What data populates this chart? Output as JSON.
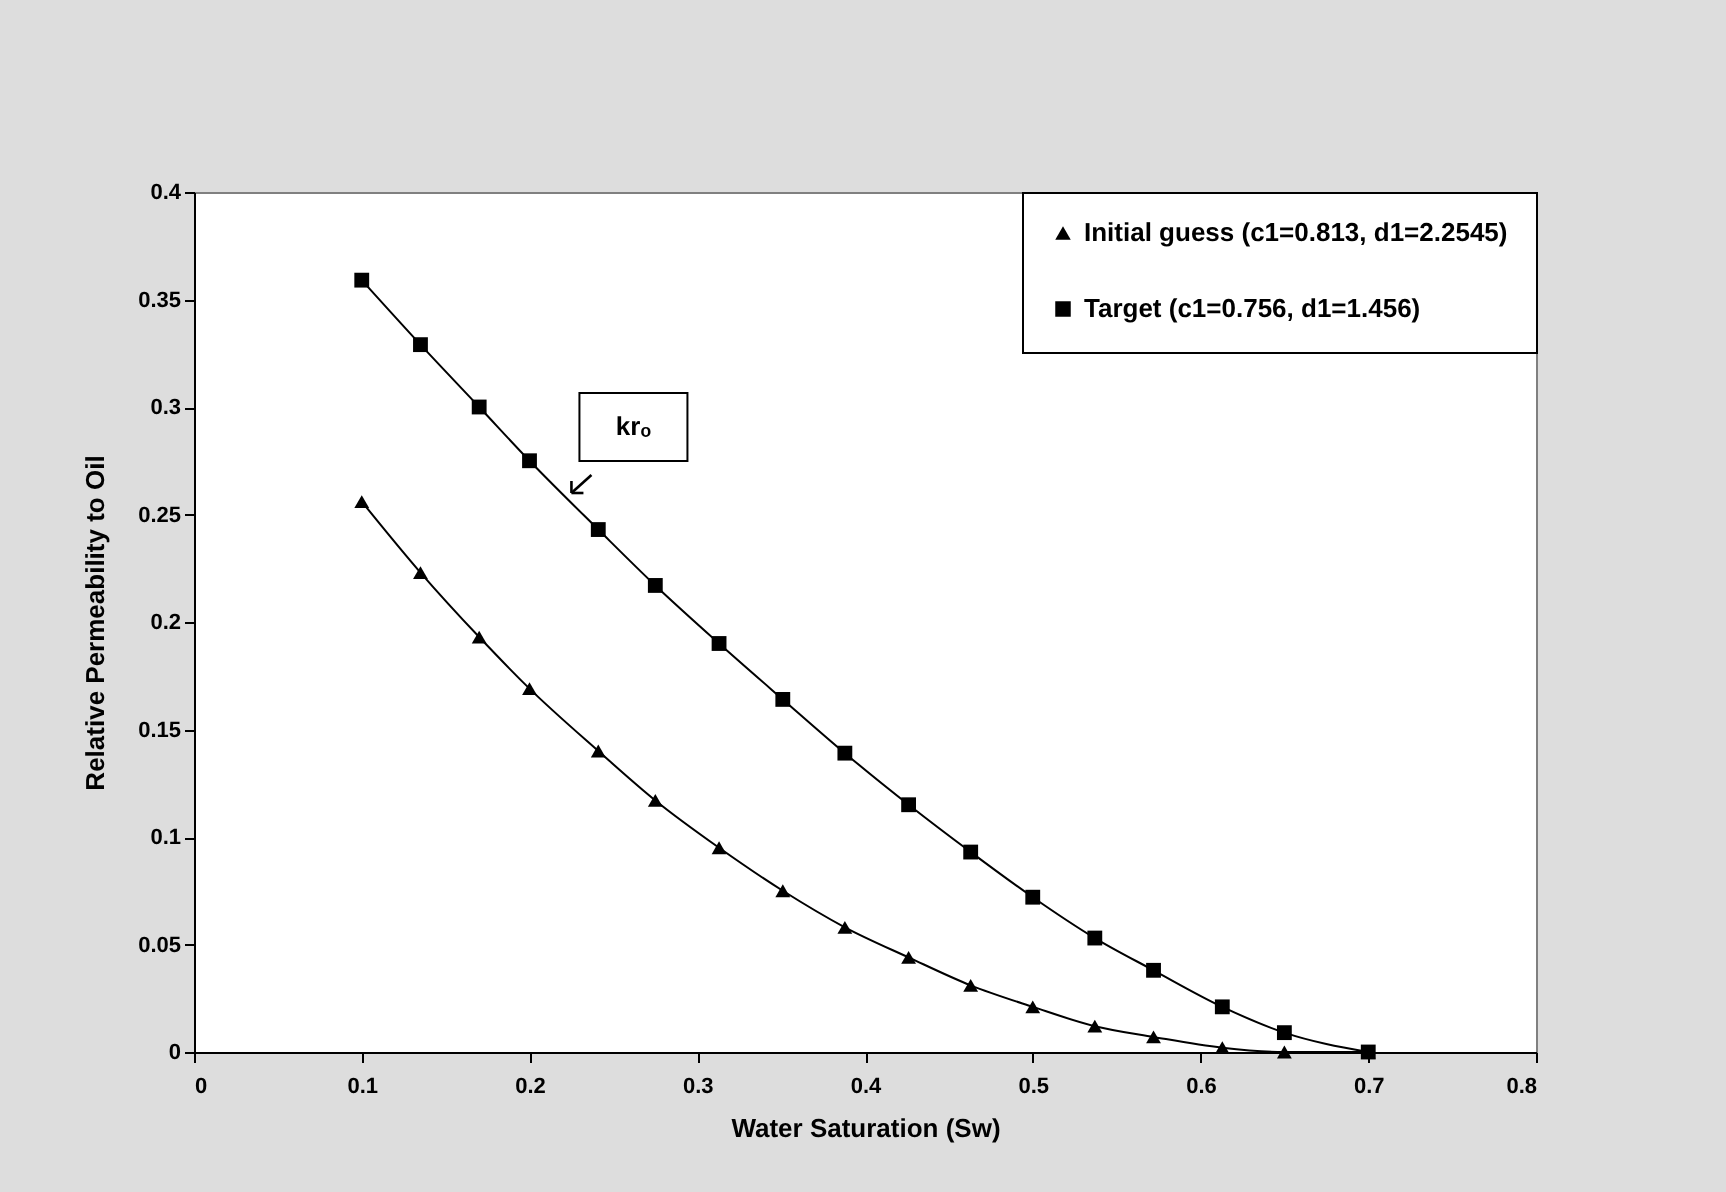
{
  "chart_data": {
    "type": "line",
    "xlabel": "Water Saturation (Sw)",
    "ylabel": "Relative Permeability to Oil",
    "xlim": [
      0,
      0.8
    ],
    "xticks": [
      0,
      0.1,
      0.2,
      0.3,
      0.4,
      0.5,
      0.6,
      0.7,
      0.8
    ],
    "ylim": [
      0,
      0.4
    ],
    "yticks": [
      0,
      0.05,
      0.1,
      0.15,
      0.2,
      0.25,
      0.3,
      0.35,
      0.4
    ],
    "grid": false,
    "legend": "top right",
    "line_style": "solid",
    "x": [
      0.1,
      0.135,
      0.17,
      0.2,
      0.241,
      0.275,
      0.313,
      0.351,
      0.388,
      0.426,
      0.463,
      0.5,
      0.537,
      0.572,
      0.613,
      0.65,
      0.7
    ],
    "series": [
      {
        "name": "Initial guess (c1=0.813, d1=2.2545)",
        "color": "#000000",
        "marker": "triangle",
        "values": [
          0.256,
          0.223,
          0.193,
          0.169,
          0.14,
          0.117,
          0.095,
          0.075,
          0.058,
          0.044,
          0.031,
          0.021,
          0.012,
          0.007,
          0.002,
          0.0,
          0.0
        ]
      },
      {
        "name": "Target (c1=0.756, d1=1.456)",
        "color": "#000000",
        "marker": "square",
        "values": [
          0.359,
          0.329,
          0.3,
          0.275,
          0.243,
          0.217,
          0.19,
          0.164,
          0.139,
          0.115,
          0.093,
          0.072,
          0.053,
          0.038,
          0.021,
          0.009,
          0.0
        ]
      }
    ],
    "annotations": [
      {
        "text": "krₒ",
        "x": 0.225,
        "y": 0.26
      }
    ]
  }
}
